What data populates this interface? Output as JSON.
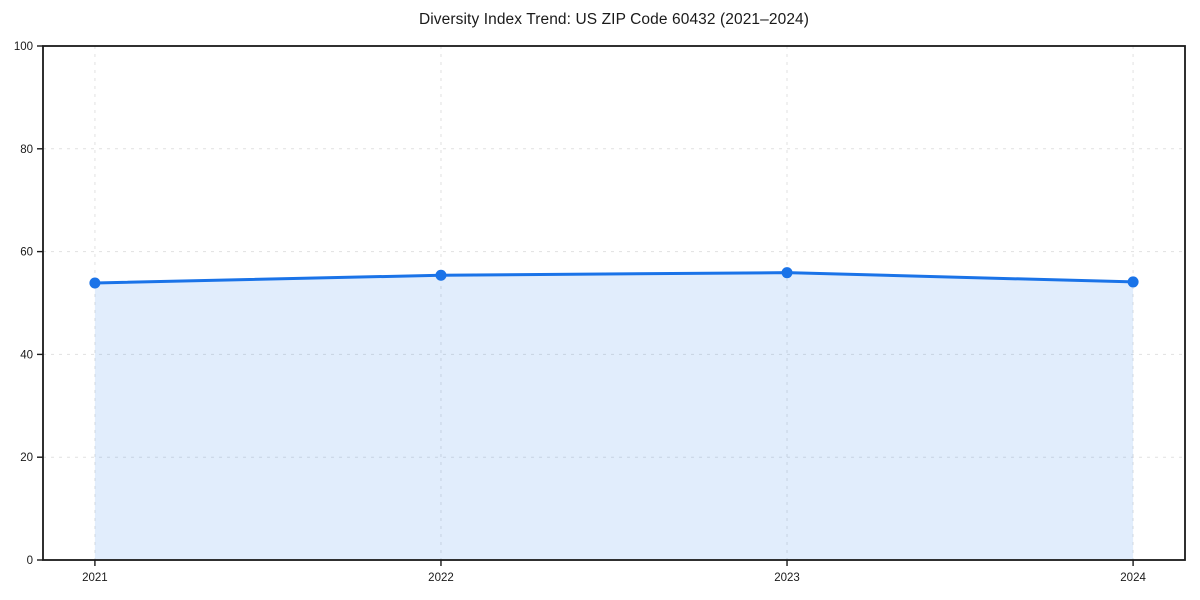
{
  "chart_data": {
    "type": "area",
    "title": "Diversity Index Trend: US ZIP Code 60432 (2021–2024)",
    "x": [
      2021,
      2022,
      2023,
      2024
    ],
    "x_tick_labels": [
      "2021",
      "2022",
      "2023",
      "2024"
    ],
    "series": [
      {
        "name": "Diversity Index",
        "values": [
          53.9,
          55.4,
          55.9,
          54.1
        ]
      }
    ],
    "xlabel": "",
    "ylabel": "",
    "ylim": [
      0,
      100
    ],
    "yticks": [
      0,
      20,
      40,
      60,
      80,
      100
    ],
    "x_margin": 0.15,
    "grid": true,
    "grid_style": "dashed",
    "legend_position": "none",
    "colors": {
      "line": "#1a73e8",
      "marker": "#1a73e8",
      "fill": "#1a73e8",
      "fill_opacity": 0.13,
      "grid": "#e1e1e1",
      "spine": "#1a1a1a",
      "tick_text": "#1a1a1a"
    }
  }
}
